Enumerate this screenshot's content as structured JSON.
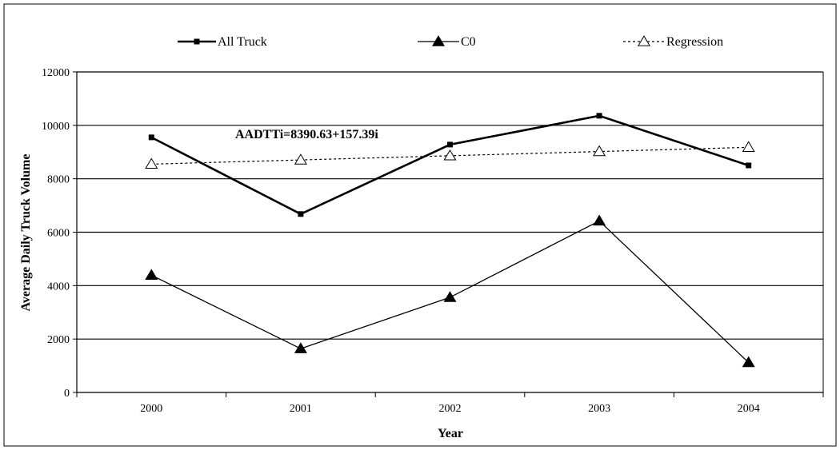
{
  "chart_data": {
    "type": "line",
    "categories": [
      "2000",
      "2001",
      "2002",
      "2003",
      "2004"
    ],
    "series": [
      {
        "name": "All Truck",
        "values": [
          9550,
          6680,
          9280,
          10360,
          8500
        ],
        "marker": "square",
        "line": "solid-thick",
        "color": "#000000"
      },
      {
        "name": "C0",
        "values": [
          4390,
          1640,
          3560,
          6420,
          1120
        ],
        "marker": "triangle-filled",
        "line": "solid",
        "color": "#000000"
      },
      {
        "name": "Regression",
        "values": [
          8548,
          8705,
          8862,
          9020,
          9177
        ],
        "marker": "triangle-open",
        "line": "dotted",
        "color": "#000000"
      }
    ],
    "xlabel": "Year",
    "ylabel": "Average Daily Truck Volume",
    "ylim": [
      0,
      12000
    ],
    "yticks": [
      "0",
      "2000",
      "4000",
      "6000",
      "8000",
      "10000",
      "12000"
    ],
    "grid": true,
    "legend_position": "top",
    "annotation": "AADTTi=8390.63+157.39i"
  }
}
